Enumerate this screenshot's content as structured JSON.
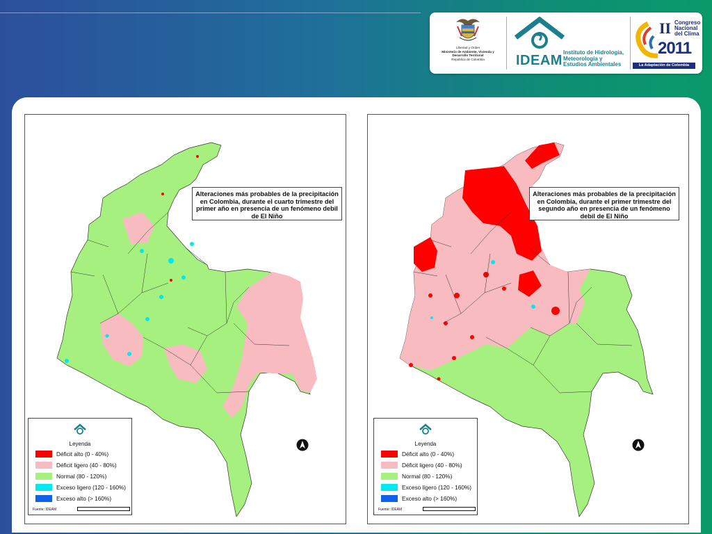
{
  "header": {
    "ministry_logo": {
      "motto": "Libertad y Orden",
      "name": "Ministerio de Ambiente, Vivienda y Desarrollo Territorial",
      "country": "República de Colombia"
    },
    "ideam_logo": {
      "acronym": "IDEAM",
      "full_name": "Instituto de Hidrología, Meteorología y Estudios Ambientales"
    },
    "congress_logo": {
      "numeral": "II",
      "line1": "Congreso",
      "line2": "Nacional",
      "line3": "del Clima",
      "year": "2011",
      "tagline": "La Adaptación de Colombia"
    }
  },
  "maps": [
    {
      "title": "Alteraciones más probables de la precipitación en Colombia, durante el cuarto trimestre del primer año en presencia de un fenómeno debil de El Niño",
      "legend_title": "Leyenda",
      "source": "Fuente: IDEAM",
      "dominant_categories": [
        "Normal (80 - 120%)",
        "Déficit ligero (40 - 80%)"
      ]
    },
    {
      "title": "Alteraciones más probables de la precipitación en Colombia, durante el primer trimestre del segundo año en presencia de un fenómeno debil de El Niño",
      "legend_title": "Leyenda",
      "source": "Fuente: IDEAM",
      "dominant_categories": [
        "Déficit ligero (40 - 80%)",
        "Déficit alto (0 - 40%)",
        "Normal (80 - 120%)"
      ]
    }
  ],
  "legend_items": [
    {
      "label": "Déficit alto (0 - 40%)",
      "color": "#ff0000"
    },
    {
      "label": "Déficit ligero (40 - 80%)",
      "color": "#f8bcc0"
    },
    {
      "label": "Normal (80 - 120%)",
      "color": "#a5f07e"
    },
    {
      "label": "Exceso ligero (120 - 160%)",
      "color": "#00e8f0"
    },
    {
      "label": "Exceso alto (> 160%)",
      "color": "#1060e8"
    }
  ]
}
